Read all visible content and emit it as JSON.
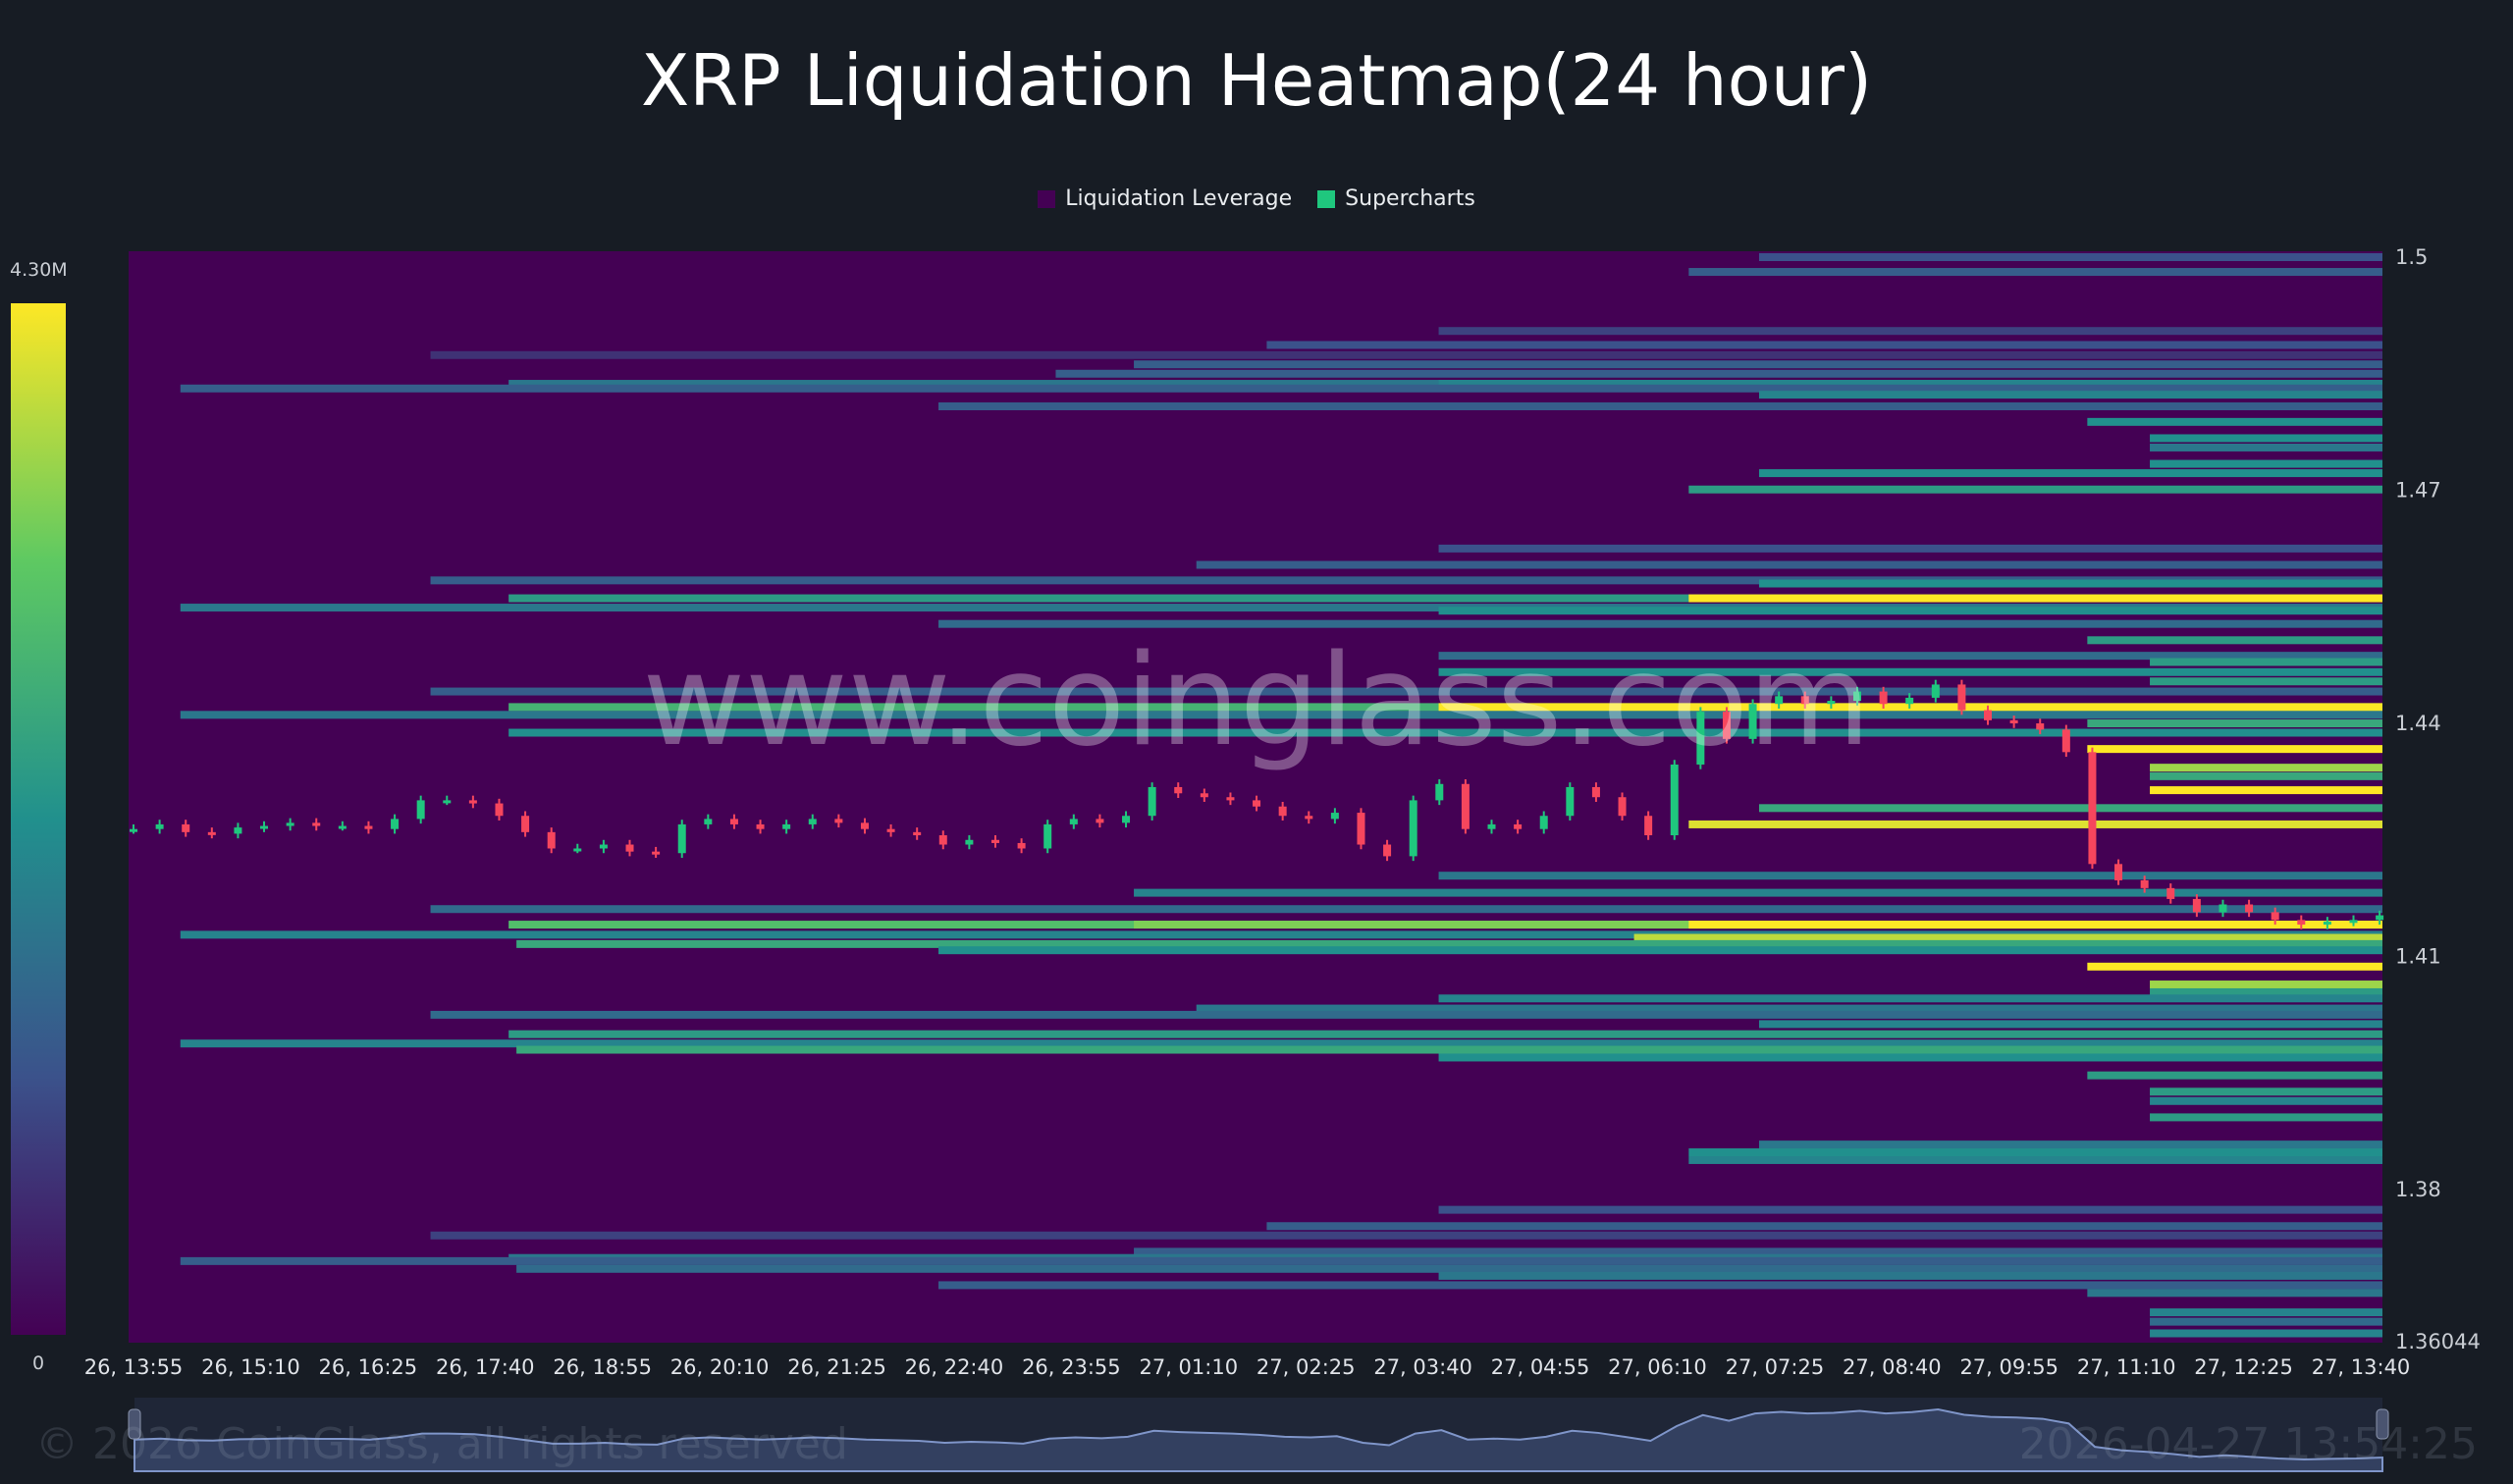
{
  "title": "XRP Liquidation Heatmap(24 hour)",
  "legend": [
    {
      "label": "Liquidation Leverage",
      "color": "#440154"
    },
    {
      "label": "Supercharts",
      "color": "#1fc77e"
    }
  ],
  "colorbar": {
    "max_label": "4.30M",
    "min_label": "0",
    "colors": [
      "#440154",
      "#3b528b",
      "#21908d",
      "#5ec962",
      "#fde725"
    ]
  },
  "watermark": "www.coinglass.com",
  "copyright": "© 2026 CoinGlass, all rights reserved",
  "timestamp": "2026-04-27 13:54:25",
  "chart_data": {
    "type": "heatmap",
    "title": "XRP Liquidation Heatmap(24 hour)",
    "y_ticks": [
      "1.5",
      "1.47",
      "1.44",
      "1.41",
      "1.38",
      "1.36044"
    ],
    "ylim": [
      1.36044,
      1.5
    ],
    "x_ticks": [
      "26, 13:55",
      "26, 15:10",
      "26, 16:25",
      "26, 17:40",
      "26, 18:55",
      "26, 20:10",
      "26, 21:25",
      "26, 22:40",
      "26, 23:55",
      "27, 01:10",
      "27, 02:25",
      "27, 03:40",
      "27, 04:55",
      "27, 06:10",
      "27, 07:25",
      "27, 08:40",
      "27, 09:55",
      "27, 11:10",
      "27, 12:25",
      "27, 13:40"
    ],
    "band_columns": [
      "price",
      "start_time",
      "intensity"
    ],
    "bands": [
      [
        1.5,
        "27, 07:15",
        0.25
      ],
      [
        1.4981,
        "27, 06:30",
        0.3
      ],
      [
        1.4905,
        "27, 03:50",
        0.2
      ],
      [
        1.4887,
        "27, 02:00",
        0.25
      ],
      [
        1.4874,
        "26, 17:05",
        0.15
      ],
      [
        1.4862,
        "27, 00:35",
        0.3
      ],
      [
        1.485,
        "26, 23:45",
        0.3
      ],
      [
        1.4837,
        "26, 17:55",
        0.4
      ],
      [
        1.4837,
        "27, 03:50",
        0.45
      ],
      [
        1.4831,
        "26, 14:25",
        0.3
      ],
      [
        1.4823,
        "27, 07:15",
        0.45
      ],
      [
        1.4808,
        "26, 22:30",
        0.3
      ],
      [
        1.4788,
        "27, 10:45",
        0.5
      ],
      [
        1.4767,
        "27, 11:25",
        0.5
      ],
      [
        1.4755,
        "27, 11:25",
        0.4
      ],
      [
        1.4734,
        "27, 11:25",
        0.5
      ],
      [
        1.4722,
        "27, 07:15",
        0.5
      ],
      [
        1.4701,
        "27, 06:30",
        0.55
      ],
      [
        1.4625,
        "27, 03:50",
        0.25
      ],
      [
        1.4604,
        "27, 01:15",
        0.3
      ],
      [
        1.4584,
        "26, 17:05",
        0.3
      ],
      [
        1.458,
        "27, 07:15",
        0.5
      ],
      [
        1.4561,
        "26, 17:55",
        0.55
      ],
      [
        1.4561,
        "27, 06:30",
        1.0
      ],
      [
        1.4549,
        "26, 14:25",
        0.4
      ],
      [
        1.4545,
        "27, 03:50",
        0.5
      ],
      [
        1.4528,
        "26, 22:30",
        0.35
      ],
      [
        1.4507,
        "27, 10:45",
        0.55
      ],
      [
        1.4487,
        "27, 03:50",
        0.35
      ],
      [
        1.4479,
        "27, 11:25",
        0.55
      ],
      [
        1.4466,
        "27, 03:50",
        0.5
      ],
      [
        1.4454,
        "27, 11:25",
        0.55
      ],
      [
        1.4441,
        "26, 17:05",
        0.3
      ],
      [
        1.4421,
        "26, 17:55",
        0.65
      ],
      [
        1.4421,
        "27, 03:50",
        1.0
      ],
      [
        1.4411,
        "26, 14:25",
        0.4
      ],
      [
        1.44,
        "27, 10:45",
        0.6
      ],
      [
        1.4388,
        "26, 17:55",
        0.5
      ],
      [
        1.4367,
        "27, 10:45",
        1.0
      ],
      [
        1.4343,
        "27, 11:25",
        0.85
      ],
      [
        1.4332,
        "27, 11:25",
        0.6
      ],
      [
        1.4314,
        "27, 11:25",
        1.0
      ],
      [
        1.4291,
        "27, 07:15",
        0.6
      ],
      [
        1.427,
        "27, 06:30",
        0.95
      ],
      [
        1.4204,
        "27, 03:50",
        0.4
      ],
      [
        1.4182,
        "27, 00:35",
        0.45
      ],
      [
        1.4161,
        "26, 17:05",
        0.35
      ],
      [
        1.4141,
        "26, 17:55",
        0.7
      ],
      [
        1.4141,
        "27, 00:35",
        0.8
      ],
      [
        1.4141,
        "27, 06:30",
        1.0
      ],
      [
        1.4128,
        "26, 14:25",
        0.45
      ],
      [
        1.4124,
        "27, 05:55",
        0.9
      ],
      [
        1.4116,
        "26, 18:00",
        0.6
      ],
      [
        1.4108,
        "26, 22:30",
        0.5
      ],
      [
        1.4087,
        "27, 10:45",
        1.0
      ],
      [
        1.4064,
        "27, 11:25",
        0.85
      ],
      [
        1.4054,
        "27, 11:25",
        0.55
      ],
      [
        1.4046,
        "27, 03:50",
        0.45
      ],
      [
        1.4033,
        "27, 01:15",
        0.4
      ],
      [
        1.4025,
        "26, 17:05",
        0.35
      ],
      [
        1.4013,
        "27, 07:15",
        0.45
      ],
      [
        1.4,
        "26, 17:55",
        0.55
      ],
      [
        1.3988,
        "26, 14:25",
        0.45
      ],
      [
        1.398,
        "26, 18:00",
        0.6
      ],
      [
        1.397,
        "27, 03:50",
        0.5
      ],
      [
        1.3947,
        "27, 10:45",
        0.55
      ],
      [
        1.3926,
        "27, 11:25",
        0.55
      ],
      [
        1.3914,
        "27, 11:25",
        0.45
      ],
      [
        1.3893,
        "27, 11:25",
        0.55
      ],
      [
        1.3858,
        "27, 07:15",
        0.4
      ],
      [
        1.3848,
        "27, 06:30",
        0.5
      ],
      [
        1.3838,
        "27, 06:30",
        0.45
      ],
      [
        1.3774,
        "27, 03:50",
        0.25
      ],
      [
        1.3753,
        "27, 02:00",
        0.3
      ],
      [
        1.3741,
        "26, 17:05",
        0.2
      ],
      [
        1.372,
        "27, 00:35",
        0.3
      ],
      [
        1.3712,
        "26, 17:55",
        0.4
      ],
      [
        1.3708,
        "26, 14:25",
        0.3
      ],
      [
        1.3698,
        "26, 18:00",
        0.35
      ],
      [
        1.3689,
        "27, 03:50",
        0.4
      ],
      [
        1.3677,
        "26, 22:30",
        0.3
      ],
      [
        1.3667,
        "27, 10:45",
        0.4
      ],
      [
        1.3642,
        "27, 11:25",
        0.45
      ],
      [
        1.363,
        "27, 11:25",
        0.35
      ],
      [
        1.3615,
        "27, 11:25",
        0.45
      ]
    ],
    "price_series": {
      "start": "26, 13:55",
      "end": "27, 13:52",
      "closes": [
        1.4264,
        1.427,
        1.426,
        1.4258,
        1.4266,
        1.4268,
        1.4272,
        1.4268,
        1.4268,
        1.4264,
        1.4277,
        1.4301,
        1.4301,
        1.4297,
        1.4281,
        1.426,
        1.4239,
        1.4239,
        1.4244,
        1.4235,
        1.4233,
        1.427,
        1.4277,
        1.427,
        1.4264,
        1.427,
        1.4277,
        1.4272,
        1.4264,
        1.426,
        1.4256,
        1.4244,
        1.425,
        1.4246,
        1.4239,
        1.427,
        1.4277,
        1.4272,
        1.4281,
        1.4318,
        1.431,
        1.4305,
        1.4301,
        1.4293,
        1.4281,
        1.4277,
        1.4285,
        1.4244,
        1.4229,
        1.4301,
        1.4322,
        1.4264,
        1.427,
        1.4264,
        1.4281,
        1.4318,
        1.4305,
        1.4281,
        1.4256,
        1.4347,
        1.4415,
        1.438,
        1.4425,
        1.4435,
        1.4425,
        1.4429,
        1.4441,
        1.4425,
        1.4433,
        1.445,
        1.4417,
        1.4404,
        1.44,
        1.4392,
        1.4363,
        1.4219,
        1.4198,
        1.4188,
        1.4174,
        1.4157,
        1.4167,
        1.4157,
        1.4147,
        1.4141,
        1.4145,
        1.4147,
        1.4153
      ],
      "up_color": "#1fc77e",
      "down_color": "#f6465d"
    }
  }
}
